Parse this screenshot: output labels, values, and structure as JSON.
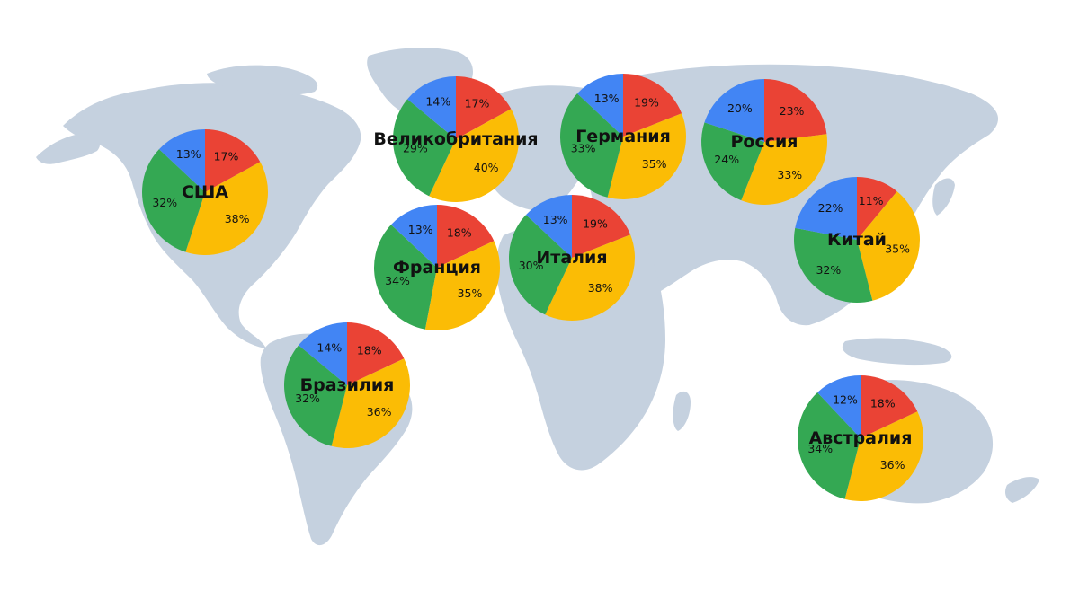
{
  "colors": {
    "red": "#EA4335",
    "yellow": "#FBBC05",
    "green": "#34A853",
    "blue": "#4285F4",
    "map": "#C5D1DF"
  },
  "chart_data": {
    "type": "pie",
    "series_order": [
      "red",
      "yellow",
      "green",
      "blue"
    ],
    "pies": [
      {
        "label": "США",
        "values": [
          17,
          38,
          32,
          13
        ]
      },
      {
        "label": "Великобритания",
        "values": [
          17,
          40,
          29,
          14
        ]
      },
      {
        "label": "Германия",
        "values": [
          19,
          35,
          33,
          13
        ]
      },
      {
        "label": "Россия",
        "values": [
          23,
          33,
          24,
          20
        ]
      },
      {
        "label": "Франция",
        "values": [
          18,
          35,
          34,
          13
        ]
      },
      {
        "label": "Италия",
        "values": [
          19,
          38,
          30,
          13
        ]
      },
      {
        "label": "Китай",
        "values": [
          11,
          35,
          32,
          22
        ]
      },
      {
        "label": "Бразилия",
        "values": [
          18,
          36,
          32,
          14
        ]
      },
      {
        "label": "Австралия",
        "values": [
          18,
          36,
          34,
          12
        ]
      }
    ]
  }
}
